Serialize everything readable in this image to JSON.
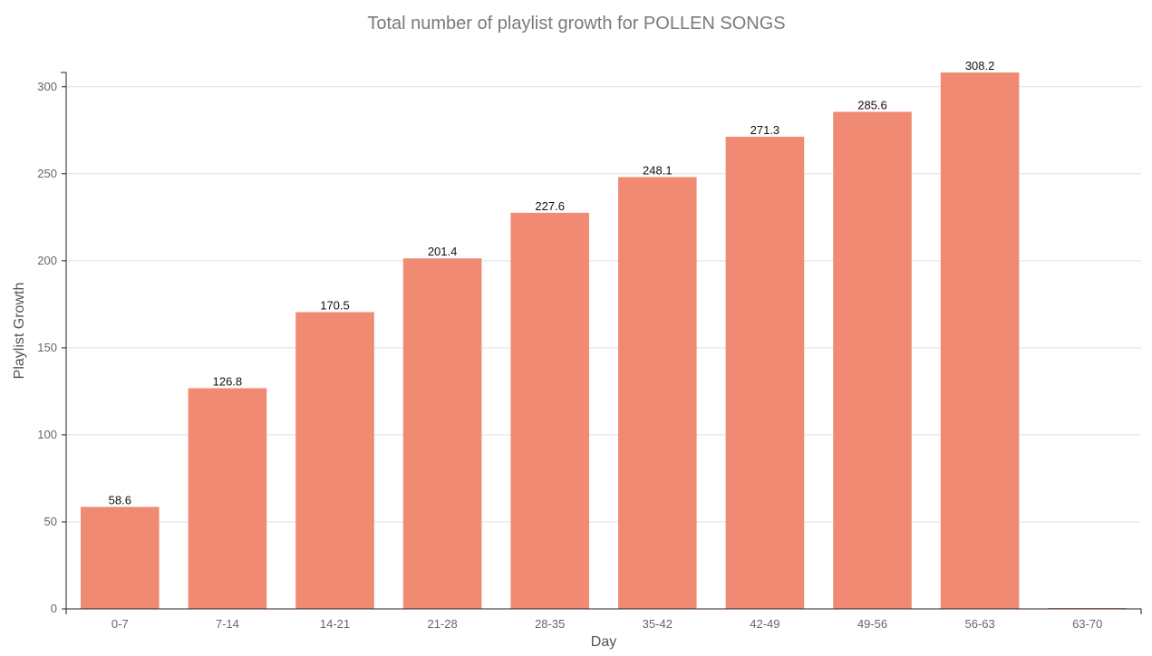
{
  "chart_data": {
    "type": "bar",
    "title": "Total number of playlist growth for POLLEN SONGS",
    "xlabel": "Day",
    "ylabel": "Playlist Growth",
    "categories": [
      "0-7",
      "7-14",
      "14-21",
      "21-28",
      "28-35",
      "35-42",
      "42-49",
      "49-56",
      "56-63",
      "63-70"
    ],
    "values": [
      58.6,
      126.8,
      170.5,
      201.4,
      227.6,
      248.1,
      271.3,
      285.6,
      308.2,
      0
    ],
    "data_labels": [
      "58.6",
      "126.8",
      "170.5",
      "201.4",
      "227.6",
      "248.1",
      "271.3",
      "285.6",
      "308.2",
      ""
    ],
    "ylim": [
      0,
      308.2
    ],
    "yticks": [
      0,
      50,
      100,
      150,
      200,
      250,
      300
    ],
    "grid": true,
    "legend": "none",
    "bar_color": "#f08a73"
  }
}
